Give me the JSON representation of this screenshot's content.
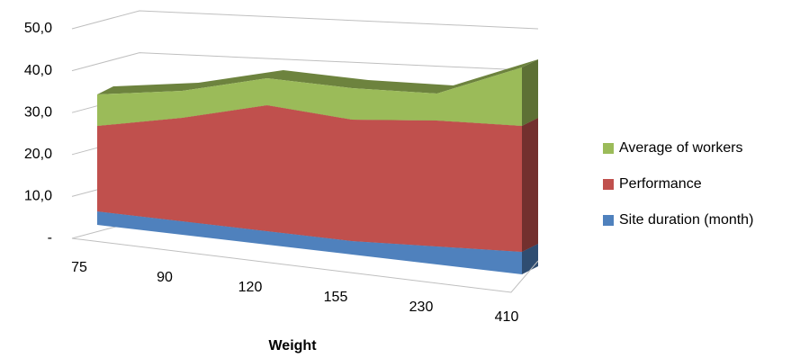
{
  "chart_data": {
    "type": "area3d",
    "x_label": "Weight",
    "categories": [
      "75",
      "90",
      "120",
      "155",
      "230",
      "410"
    ],
    "series": [
      {
        "name": "Site duration (month)",
        "color": "#4f81bd",
        "values": [
          3,
          3,
          3,
          3,
          4,
          5
        ]
      },
      {
        "name": "Performance",
        "color": "#c0504d",
        "values": [
          19,
          23,
          28,
          27,
          28,
          28
        ]
      },
      {
        "name": "Average of workers",
        "color": "#9bbb59",
        "values": [
          7,
          6,
          6,
          7,
          6,
          13
        ]
      }
    ],
    "stacked": true,
    "ylim": [
      0,
      50
    ],
    "yticks": [
      {
        "value": 0,
        "label": "-"
      },
      {
        "value": 10,
        "label": "10,0"
      },
      {
        "value": 20,
        "label": "20,0"
      },
      {
        "value": 30,
        "label": "30,0"
      },
      {
        "value": 40,
        "label": "40,0"
      },
      {
        "value": 50,
        "label": "50,0"
      }
    ],
    "grid": true,
    "legend": "right"
  }
}
